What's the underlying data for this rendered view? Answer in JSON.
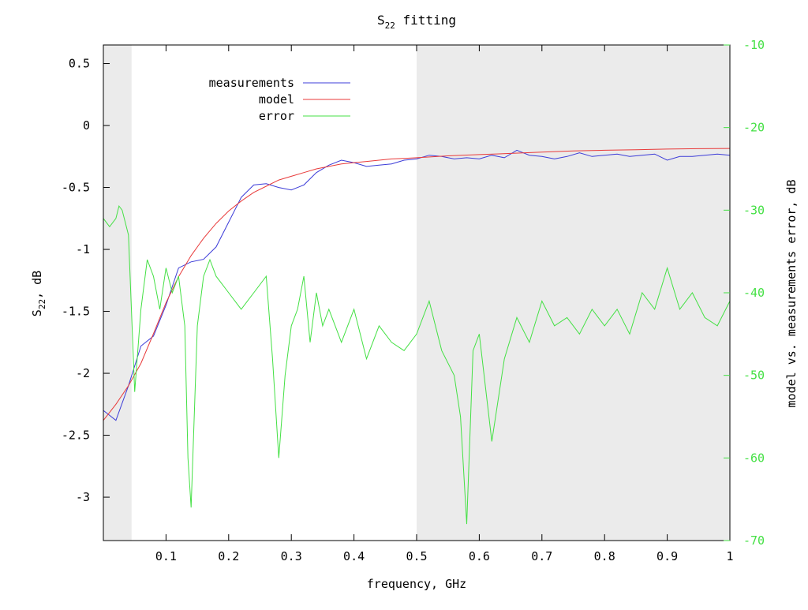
{
  "chart_data": {
    "type": "line",
    "title": "S",
    "title_sub": "22",
    "title_rest": " fitting",
    "xlabel": "frequency, GHz",
    "ylabel_main": "S",
    "ylabel_sub": "22",
    "ylabel_rest": ", dB",
    "y2label": "model vs. measurements error, dB",
    "xlim": [
      0.0,
      1.0
    ],
    "ylim": [
      -3.35,
      0.65
    ],
    "y2lim": [
      -70,
      -10
    ],
    "x_ticks": [
      "0.1",
      "0.2",
      "0.3",
      "0.4",
      "0.5",
      "0.6",
      "0.7",
      "0.8",
      "0.9",
      "1"
    ],
    "x_tick_values": [
      0.1,
      0.2,
      0.3,
      0.4,
      0.5,
      0.6,
      0.7,
      0.8,
      0.9,
      1.0
    ],
    "y_ticks": [
      "0.5",
      "0",
      "-0.5",
      "-1",
      "-1.5",
      "-2",
      "-2.5",
      "-3"
    ],
    "y_tick_values": [
      0.5,
      0,
      -0.5,
      -1,
      -1.5,
      -2,
      -2.5,
      -3
    ],
    "y2_ticks": [
      "-10",
      "-20",
      "-30",
      "-40",
      "-50",
      "-60",
      "-70"
    ],
    "y2_tick_values": [
      -10,
      -20,
      -30,
      -40,
      -50,
      -60,
      -70
    ],
    "shaded_regions": [
      [
        0.0,
        0.045
      ],
      [
        0.5,
        1.0
      ]
    ],
    "shade_color": "#ebebeb",
    "grid": false,
    "legend_position": "top-left",
    "legend": [
      "measurements",
      "model",
      "error"
    ],
    "series": [
      {
        "name": "measurements",
        "axis": "left",
        "color": "#3c3cd8",
        "x": [
          0.0,
          0.02,
          0.04,
          0.06,
          0.08,
          0.1,
          0.12,
          0.14,
          0.16,
          0.18,
          0.2,
          0.22,
          0.24,
          0.26,
          0.28,
          0.3,
          0.32,
          0.34,
          0.36,
          0.38,
          0.4,
          0.42,
          0.44,
          0.46,
          0.48,
          0.5,
          0.52,
          0.54,
          0.56,
          0.58,
          0.6,
          0.62,
          0.64,
          0.66,
          0.68,
          0.7,
          0.72,
          0.74,
          0.76,
          0.78,
          0.8,
          0.82,
          0.84,
          0.86,
          0.88,
          0.9,
          0.92,
          0.94,
          0.96,
          0.98,
          1.0
        ],
        "y": [
          -2.3,
          -2.38,
          -2.1,
          -1.78,
          -1.7,
          -1.45,
          -1.15,
          -1.1,
          -1.08,
          -0.98,
          -0.78,
          -0.58,
          -0.48,
          -0.47,
          -0.5,
          -0.52,
          -0.48,
          -0.38,
          -0.32,
          -0.28,
          -0.3,
          -0.33,
          -0.32,
          -0.31,
          -0.28,
          -0.27,
          -0.24,
          -0.25,
          -0.27,
          -0.26,
          -0.27,
          -0.24,
          -0.26,
          -0.2,
          -0.24,
          -0.25,
          -0.27,
          -0.25,
          -0.22,
          -0.25,
          -0.24,
          -0.23,
          -0.25,
          -0.24,
          -0.23,
          -0.28,
          -0.25,
          -0.25,
          -0.24,
          -0.23,
          -0.24
        ]
      },
      {
        "name": "model",
        "axis": "left",
        "color": "#e83a3a",
        "x": [
          0.0,
          0.02,
          0.04,
          0.06,
          0.08,
          0.1,
          0.12,
          0.14,
          0.16,
          0.18,
          0.2,
          0.22,
          0.24,
          0.26,
          0.28,
          0.3,
          0.32,
          0.34,
          0.36,
          0.38,
          0.4,
          0.42,
          0.44,
          0.46,
          0.48,
          0.5,
          0.55,
          0.6,
          0.65,
          0.7,
          0.75,
          0.8,
          0.85,
          0.9,
          0.95,
          1.0
        ],
        "y": [
          -2.38,
          -2.25,
          -2.1,
          -1.92,
          -1.68,
          -1.43,
          -1.22,
          -1.05,
          -0.91,
          -0.79,
          -0.69,
          -0.61,
          -0.54,
          -0.49,
          -0.44,
          -0.41,
          -0.38,
          -0.35,
          -0.33,
          -0.31,
          -0.3,
          -0.29,
          -0.28,
          -0.27,
          -0.265,
          -0.26,
          -0.245,
          -0.235,
          -0.225,
          -0.215,
          -0.205,
          -0.2,
          -0.195,
          -0.19,
          -0.187,
          -0.185
        ]
      },
      {
        "name": "error",
        "axis": "right",
        "color": "#44e044",
        "x": [
          0.0,
          0.01,
          0.02,
          0.025,
          0.03,
          0.04,
          0.05,
          0.06,
          0.07,
          0.08,
          0.09,
          0.1,
          0.11,
          0.12,
          0.13,
          0.135,
          0.14,
          0.15,
          0.16,
          0.17,
          0.18,
          0.2,
          0.22,
          0.24,
          0.26,
          0.27,
          0.28,
          0.29,
          0.3,
          0.31,
          0.32,
          0.33,
          0.34,
          0.35,
          0.36,
          0.37,
          0.38,
          0.4,
          0.42,
          0.44,
          0.46,
          0.48,
          0.5,
          0.52,
          0.54,
          0.56,
          0.57,
          0.58,
          0.59,
          0.6,
          0.62,
          0.64,
          0.66,
          0.68,
          0.7,
          0.72,
          0.74,
          0.76,
          0.78,
          0.8,
          0.82,
          0.84,
          0.86,
          0.88,
          0.9,
          0.92,
          0.94,
          0.96,
          0.98,
          1.0
        ],
        "y": [
          -31,
          -32,
          -31,
          -29.5,
          -30,
          -33,
          -52,
          -42,
          -36,
          -38,
          -42,
          -37,
          -40,
          -38,
          -44,
          -60,
          -66,
          -44,
          -38,
          -36,
          -38,
          -40,
          -42,
          -40,
          -38,
          -48,
          -60,
          -50,
          -44,
          -42,
          -38,
          -46,
          -40,
          -44,
          -42,
          -44,
          -46,
          -42,
          -48,
          -44,
          -46,
          -47,
          -45,
          -41,
          -47,
          -50,
          -55,
          -68,
          -47,
          -45,
          -58,
          -48,
          -43,
          -46,
          -41,
          -44,
          -43,
          -45,
          -42,
          -44,
          -42,
          -45,
          -40,
          -42,
          -37,
          -42,
          -40,
          -43,
          -44,
          -41
        ]
      }
    ]
  }
}
